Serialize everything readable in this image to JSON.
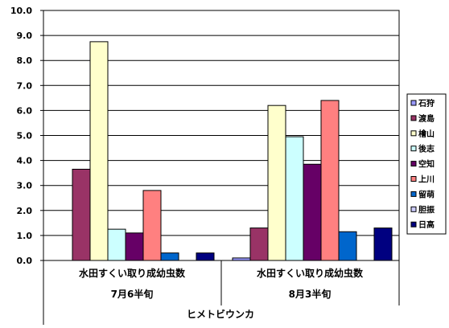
{
  "chart_data": {
    "type": "bar",
    "categories": [
      {
        "line1": "水田すくい取り成幼虫数",
        "line2": "7月6半旬"
      },
      {
        "line1": "水田すくい取り成幼虫数",
        "line2": "8月3半旬"
      }
    ],
    "group_label": "ヒメトビウンカ",
    "y_ticks": [
      "0.0",
      "1.0",
      "2.0",
      "3.0",
      "4.0",
      "5.0",
      "6.0",
      "7.0",
      "8.0",
      "9.0",
      "10.0"
    ],
    "ylim": [
      0,
      10
    ],
    "grid": true,
    "legend_position": "right",
    "series": [
      {
        "name": "石狩",
        "color": "#9999ff",
        "values": [
          0,
          0.1
        ]
      },
      {
        "name": "渡島",
        "color": "#993366",
        "values": [
          3.65,
          1.3
        ]
      },
      {
        "name": "檜山",
        "color": "#ffffcc",
        "values": [
          8.75,
          6.2
        ]
      },
      {
        "name": "後志",
        "color": "#ccffff",
        "values": [
          1.25,
          4.95
        ]
      },
      {
        "name": "空知",
        "color": "#660066",
        "values": [
          1.1,
          3.85
        ]
      },
      {
        "name": "上川",
        "color": "#ff8080",
        "values": [
          2.8,
          6.4
        ]
      },
      {
        "name": "留萌",
        "color": "#0066cc",
        "values": [
          0.3,
          1.15
        ]
      },
      {
        "name": "胆振",
        "color": "#ccccff",
        "values": [
          0,
          0
        ]
      },
      {
        "name": "日高",
        "color": "#000080",
        "values": [
          0.3,
          1.3
        ]
      }
    ]
  }
}
